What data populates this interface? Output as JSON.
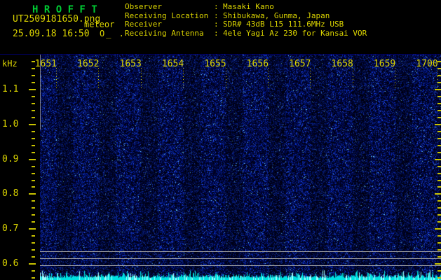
{
  "app": {
    "title": "H R O F F T"
  },
  "header": {
    "filename": "UT2509181650.png",
    "mode": "meteor",
    "datetime": "25.09.18 16:50",
    "counter": "O_ .",
    "separator": ":",
    "info": [
      {
        "label": "Observer",
        "value": "Masaki Kano"
      },
      {
        "label": "Receiving Location",
        "value": "Shibukawa, Gunma, Japan"
      },
      {
        "label": "Receiver",
        "value": "SDR# 43dB L15 111.6MHz USB"
      },
      {
        "label": "Receiving Antenna",
        "value": "4ele Yagi Az 230 for Kansai VOR"
      }
    ]
  },
  "chart_data": {
    "type": "heatmap",
    "x_axis": {
      "label": "",
      "ticks": [
        "1651",
        "1652",
        "1653",
        "1654",
        "1655",
        "1656",
        "1657",
        "1658",
        "1659",
        "1700"
      ],
      "range": [
        "16:50",
        "17:00"
      ]
    },
    "y_axis": {
      "label": "kHz",
      "ticks": [
        "1.1",
        "1.0",
        "0.9",
        "0.8",
        "0.7",
        "0.6"
      ],
      "range_khz": [
        0.55,
        1.2
      ],
      "minor_tick_khz": 0.02
    },
    "content": "uniform dark-blue background radio noise; no meteor echo traces visible",
    "level_lines_y_khz": [
      0.64,
      0.62,
      0.6
    ],
    "noise_floor_meter": "jagged cyan signal-level trace along bottom edge"
  },
  "colors": {
    "background": "#000000",
    "title_green": "#00cc33",
    "text_yellow": "#ddd600",
    "tick_yellow": "#c8c200",
    "grid_gray": "#a8a8a8",
    "meter_cyan": "#00e0e0",
    "noise_blue": "#2038c0",
    "noise_bright": "#78d8ff"
  }
}
